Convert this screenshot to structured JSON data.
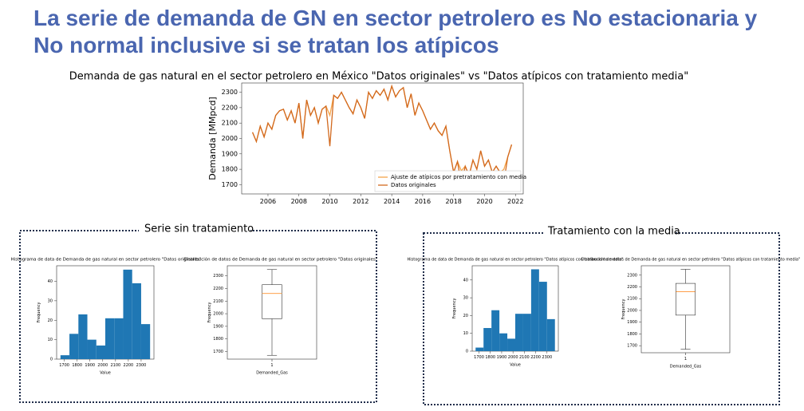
{
  "title_lines": [
    "La serie de demanda de GN en sector petrolero es No estacionaria y",
    "No normal inclusive si se tratan los atípicos"
  ],
  "panels": [
    {
      "label": "Serie sin tratamiento"
    },
    {
      "label": "Tratamiento con la media"
    }
  ],
  "chart_data": [
    {
      "type": "line",
      "title": "Demanda de gas natural en el sector petrolero en México \"Datos originales\" vs \"Datos atípicos con tratamiento media\"",
      "ylabel": "Demanda [MMpcd]",
      "x": [
        2005,
        2005.25,
        2005.5,
        2005.75,
        2006,
        2006.25,
        2006.5,
        2006.75,
        2007,
        2007.25,
        2007.5,
        2007.75,
        2008,
        2008.25,
        2008.5,
        2008.75,
        2009,
        2009.25,
        2009.5,
        2009.75,
        2010,
        2010.25,
        2010.5,
        2010.75,
        2011,
        2011.25,
        2011.5,
        2011.75,
        2012,
        2012.25,
        2012.5,
        2012.75,
        2013,
        2013.25,
        2013.5,
        2013.75,
        2014,
        2014.25,
        2014.5,
        2014.75,
        2015,
        2015.25,
        2015.5,
        2015.75,
        2016,
        2016.25,
        2016.5,
        2016.75,
        2017,
        2017.25,
        2017.5,
        2017.75,
        2018,
        2018.25,
        2018.5,
        2018.75,
        2019,
        2019.25,
        2019.5,
        2019.75,
        2020,
        2020.25,
        2020.5,
        2020.75,
        2021,
        2021.25,
        2021.5,
        2021.75
      ],
      "series": [
        {
          "name": "Ajuste de atípicos por pretratamiento con media",
          "color": "#f5a54a",
          "values": [
            2040,
            1980,
            2080,
            2010,
            2100,
            2060,
            2150,
            2180,
            2190,
            2120,
            2180,
            2100,
            2230,
            2000,
            2250,
            2150,
            2200,
            2100,
            2190,
            2210,
            2150,
            2280,
            2260,
            2300,
            2250,
            2200,
            2160,
            2250,
            2200,
            2130,
            2300,
            2260,
            2310,
            2280,
            2320,
            2250,
            2340,
            2270,
            2310,
            2330,
            2200,
            2290,
            2150,
            2230,
            2180,
            2120,
            2060,
            2100,
            2050,
            2020,
            2080,
            1920,
            1780,
            1850,
            1790,
            1820,
            1760,
            1860,
            1800,
            1920,
            1820,
            1860,
            1780,
            1820,
            1780,
            1800,
            1880,
            1960
          ]
        },
        {
          "name": "Datos originales",
          "color": "#d2691e",
          "values": [
            2040,
            1980,
            2080,
            2010,
            2100,
            2060,
            2150,
            2180,
            2190,
            2120,
            2180,
            2100,
            2230,
            2000,
            2250,
            2150,
            2200,
            2100,
            2190,
            2210,
            1950,
            2280,
            2260,
            2300,
            2250,
            2200,
            2160,
            2250,
            2200,
            2130,
            2300,
            2260,
            2310,
            2280,
            2320,
            2250,
            2340,
            2270,
            2310,
            2330,
            2200,
            2290,
            2150,
            2230,
            2180,
            2120,
            2060,
            2100,
            2050,
            2020,
            2080,
            1920,
            1780,
            1850,
            1700,
            1820,
            1760,
            1860,
            1800,
            1920,
            1820,
            1860,
            1780,
            1820,
            1780,
            1720,
            1880,
            1960
          ]
        }
      ],
      "xlim": [
        2004.3,
        2022.5
      ],
      "xticks": [
        2006,
        2008,
        2010,
        2012,
        2014,
        2016,
        2018,
        2020,
        2022
      ],
      "ylim": [
        1640,
        2360
      ],
      "yticks": [
        1700,
        1800,
        1900,
        2000,
        2100,
        2200,
        2300
      ],
      "legend": "lower right"
    },
    {
      "type": "histogram",
      "title": "Histograma de data de Demanda de gas natural en sector petrolero \"Datos originales\"",
      "xlabel": "Value",
      "ylabel": "Frequency",
      "color": "#1f77b4",
      "bins": [
        1670,
        1740,
        1810,
        1880,
        1950,
        2020,
        2090,
        2160,
        2230,
        2300,
        2370
      ],
      "values": [
        2,
        13,
        23,
        10,
        7,
        21,
        21,
        46,
        39,
        18
      ],
      "xlim": [
        1640,
        2400
      ],
      "xticks": [
        1700,
        1800,
        1900,
        2000,
        2100,
        2200,
        2300
      ],
      "ylim": [
        0,
        48
      ],
      "yticks": [
        0,
        10,
        20,
        30,
        40
      ]
    },
    {
      "type": "box",
      "title": "Distribución de datos de Demanda de gas natural en sector petrolero \"Datos originales\"",
      "xlabel": "Demanded_Gas",
      "ylabel": "Frequency",
      "categories": [
        "1"
      ],
      "box": {
        "min": 1670,
        "q1": 1960,
        "median": 2160,
        "q3": 2230,
        "max": 2350
      },
      "median_color": "#ff7f0e",
      "ylim": [
        1640,
        2380
      ],
      "yticks": [
        1700,
        1800,
        1900,
        2000,
        2100,
        2200,
        2300
      ]
    },
    {
      "type": "histogram",
      "title": "Histograma de data de Demanda de gas natural en sector petrolero \"Datos atípicos con tratamiento media\"",
      "xlabel": "Value",
      "ylabel": "Frequency",
      "color": "#1f77b4",
      "bins": [
        1670,
        1740,
        1810,
        1880,
        1950,
        2020,
        2090,
        2160,
        2230,
        2300,
        2370
      ],
      "values": [
        2,
        13,
        23,
        10,
        7,
        21,
        21,
        46,
        39,
        18
      ],
      "xlim": [
        1640,
        2400
      ],
      "xticks": [
        1700,
        1800,
        1900,
        2000,
        2100,
        2200,
        2300
      ],
      "ylim": [
        0,
        48
      ],
      "yticks": [
        0,
        10,
        20,
        30,
        40
      ]
    },
    {
      "type": "box",
      "title": "Distribución de datos de Demanda de gas natural en sector petrolero \"Datos atípicos con tratamiento media\"",
      "xlabel": "Demanded_Gas",
      "ylabel": "Frequency",
      "categories": [
        "1"
      ],
      "box": {
        "min": 1670,
        "q1": 1960,
        "median": 2160,
        "q3": 2230,
        "max": 2350
      },
      "median_color": "#ff7f0e",
      "ylim": [
        1640,
        2380
      ],
      "yticks": [
        1700,
        1800,
        1900,
        2000,
        2100,
        2200,
        2300
      ]
    }
  ]
}
